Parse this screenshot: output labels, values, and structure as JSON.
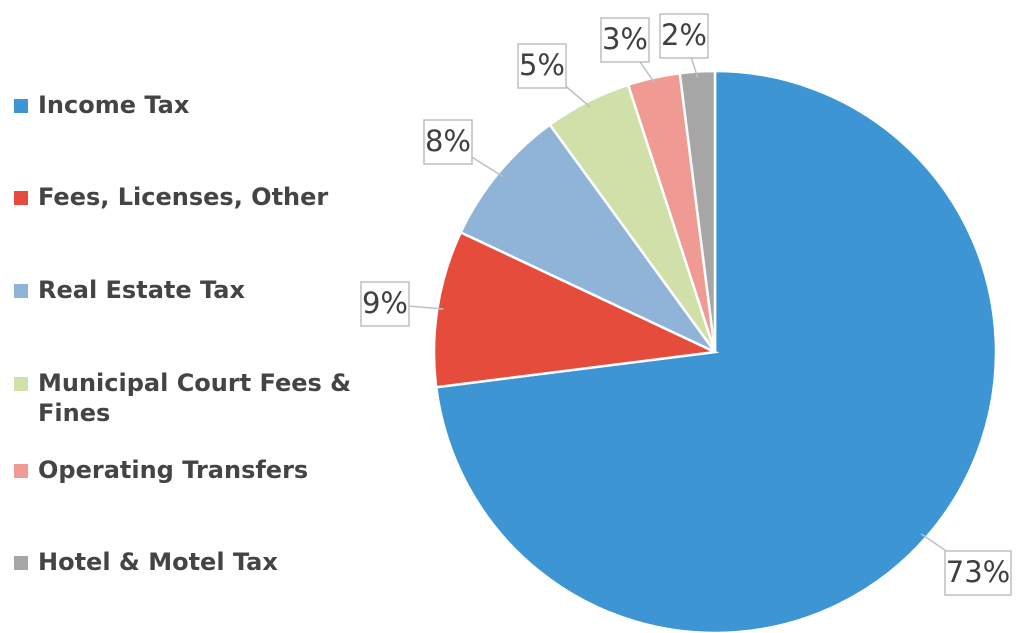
{
  "chart_data": {
    "type": "pie",
    "categories": [
      "Income Tax",
      "Fees, Licenses, Other",
      "Real Estate Tax",
      "Municipal Court Fees & Fines",
      "Operating Transfers",
      "Hotel & Motel Tax"
    ],
    "values": [
      73,
      9,
      8,
      5,
      3,
      2
    ],
    "value_labels": [
      "73%",
      "9%",
      "8%",
      "5%",
      "3%",
      "2%"
    ],
    "colors": [
      "#3d95d3",
      "#e64c3c",
      "#8fb4d8",
      "#d1e0a8",
      "#ef9a92",
      "#a6a6a6"
    ],
    "legend": "left"
  }
}
